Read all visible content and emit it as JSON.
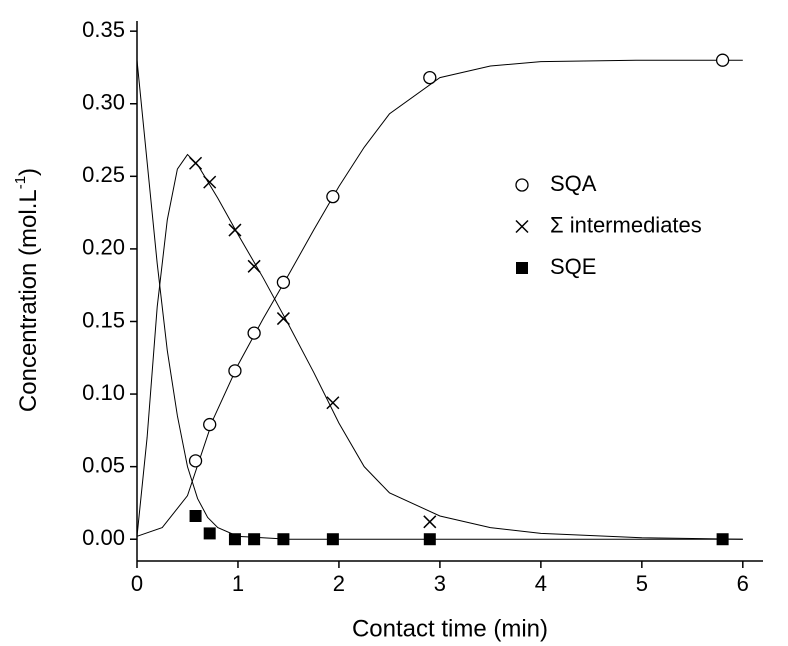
{
  "chart_data": {
    "type": "scatter",
    "x_label": "Contact time (min)",
    "y_label": [
      "Concentration (mol.L",
      "-1",
      ")"
    ],
    "xlim": [
      0,
      6.2
    ],
    "ylim": [
      -0.015,
      0.357
    ],
    "xticks": [
      0,
      1,
      2,
      3,
      4,
      5,
      6
    ],
    "yticks": [
      {
        "value": 0,
        "label": "0.00"
      },
      {
        "value": 0.05,
        "label": "0.05"
      },
      {
        "value": 0.1,
        "label": "0.10"
      },
      {
        "value": 0.15,
        "label": "0.15"
      },
      {
        "value": 0.2,
        "label": "0.20"
      },
      {
        "value": 0.25,
        "label": "0.25"
      },
      {
        "value": 0.3,
        "label": "0.30"
      },
      {
        "value": 0.35,
        "label": "0.35"
      }
    ],
    "color": "#000000",
    "series": [
      {
        "name": "SQA",
        "marker": "circle",
        "x": [
          0.58,
          0.72,
          0.97,
          1.16,
          1.45,
          1.94,
          2.9,
          5.8
        ],
        "values": [
          0.054,
          0.079,
          0.116,
          0.142,
          0.177,
          0.236,
          0.318,
          0.33
        ]
      },
      {
        "name": "Σ intermediates",
        "marker": "cross",
        "x": [
          0.58,
          0.72,
          0.97,
          1.16,
          1.45,
          1.94,
          2.9
        ],
        "values": [
          0.259,
          0.246,
          0.213,
          0.188,
          0.152,
          0.094,
          0.012
        ]
      },
      {
        "name": "SQE",
        "marker": "square",
        "x": [
          0.58,
          0.72,
          0.97,
          1.16,
          1.45,
          1.94,
          2.9,
          5.8
        ],
        "values": [
          0.016,
          0.004,
          0.0,
          0.0,
          0.0,
          0.0,
          0.0,
          0.0
        ]
      }
    ],
    "fits": [
      {
        "x": [
          0,
          0.25,
          0.5,
          0.75,
          1,
          1.25,
          1.5,
          1.75,
          2,
          2.25,
          2.5,
          3,
          3.5,
          4,
          5,
          6
        ],
        "values": [
          0.002,
          0.008,
          0.03,
          0.082,
          0.12,
          0.152,
          0.182,
          0.213,
          0.243,
          0.27,
          0.293,
          0.318,
          0.326,
          0.329,
          0.33,
          0.33
        ]
      },
      {
        "x": [
          0,
          0.1,
          0.2,
          0.3,
          0.4,
          0.5,
          0.6,
          0.8,
          1,
          1.25,
          1.5,
          1.75,
          2,
          2.25,
          2.5,
          3,
          3.5,
          4,
          5,
          6
        ],
        "values": [
          0.002,
          0.07,
          0.16,
          0.22,
          0.255,
          0.265,
          0.258,
          0.235,
          0.21,
          0.18,
          0.148,
          0.115,
          0.08,
          0.05,
          0.032,
          0.016,
          0.008,
          0.004,
          0.001,
          0.0
        ]
      },
      {
        "x": [
          0,
          0.1,
          0.2,
          0.3,
          0.4,
          0.5,
          0.6,
          0.7,
          0.8,
          1,
          1.5,
          2,
          3,
          6
        ],
        "values": [
          0.33,
          0.26,
          0.19,
          0.13,
          0.085,
          0.05,
          0.028,
          0.015,
          0.008,
          0.002,
          0.0,
          0.0,
          0.0,
          0.0
        ]
      }
    ]
  }
}
